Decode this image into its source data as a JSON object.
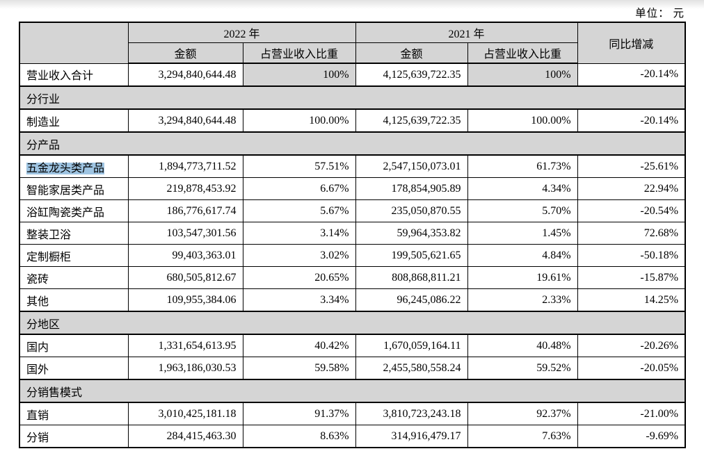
{
  "unit_label": "单位： 元",
  "colors": {
    "header_gray": "#d5d5d5",
    "selection_blue": "#9ec4e2",
    "border": "#000000"
  },
  "table": {
    "header": {
      "year_2022": "2022 年",
      "year_2021": "2021 年",
      "amount_label": "金额",
      "ratio_label": "占营业收入比重",
      "yoy_label": "同比增减"
    },
    "rows": [
      {
        "type": "data",
        "label": "营业收入合计",
        "a2022": "3,294,840,644.48",
        "r2022": "100%",
        "a2021": "4,125,639,722.35",
        "r2021": "100%",
        "yoy": "-20.14%",
        "gray_ratio": true
      },
      {
        "type": "section",
        "label": "分行业"
      },
      {
        "type": "data",
        "label": "制造业",
        "a2022": "3,294,840,644.48",
        "r2022": "100.00%",
        "a2021": "4,125,639,722.35",
        "r2021": "100.00%",
        "yoy": "-20.14%"
      },
      {
        "type": "section",
        "label": "分产品"
      },
      {
        "type": "data",
        "label": "五金龙头类产品",
        "highlight": true,
        "a2022": "1,894,773,711.52",
        "r2022": "57.51%",
        "a2021": "2,547,150,073.01",
        "r2021": "61.73%",
        "yoy": "-25.61%"
      },
      {
        "type": "data",
        "label": "智能家居类产品",
        "a2022": "219,878,453.92",
        "r2022": "6.67%",
        "a2021": "178,854,905.89",
        "r2021": "4.34%",
        "yoy": "22.94%"
      },
      {
        "type": "data",
        "label": "浴缸陶瓷类产品",
        "a2022": "186,776,617.74",
        "r2022": "5.67%",
        "a2021": "235,050,870.55",
        "r2021": "5.70%",
        "yoy": "-20.54%"
      },
      {
        "type": "data",
        "label": "整装卫浴",
        "a2022": "103,547,301.56",
        "r2022": "3.14%",
        "a2021": "59,964,353.82",
        "r2021": "1.45%",
        "yoy": "72.68%"
      },
      {
        "type": "data",
        "label": "定制橱柜",
        "a2022": "99,403,363.01",
        "r2022": "3.02%",
        "a2021": "199,505,621.65",
        "r2021": "4.84%",
        "yoy": "-50.18%"
      },
      {
        "type": "data",
        "label": "瓷砖",
        "a2022": "680,505,812.67",
        "r2022": "20.65%",
        "a2021": "808,868,811.21",
        "r2021": "19.61%",
        "yoy": "-15.87%"
      },
      {
        "type": "data",
        "label": "其他",
        "a2022": "109,955,384.06",
        "r2022": "3.34%",
        "a2021": "96,245,086.22",
        "r2021": "2.33%",
        "yoy": "14.25%"
      },
      {
        "type": "section",
        "label": "分地区"
      },
      {
        "type": "data",
        "label": "国内",
        "a2022": "1,331,654,613.95",
        "r2022": "40.42%",
        "a2021": "1,670,059,164.11",
        "r2021": "40.48%",
        "yoy": "-20.26%"
      },
      {
        "type": "data",
        "label": "国外",
        "a2022": "1,963,186,030.53",
        "r2022": "59.58%",
        "a2021": "2,455,580,558.24",
        "r2021": "59.52%",
        "yoy": "-20.05%"
      },
      {
        "type": "section",
        "label": "分销售模式"
      },
      {
        "type": "data",
        "label": "直销",
        "a2022": "3,010,425,181.18",
        "r2022": "91.37%",
        "a2021": "3,810,723,243.18",
        "r2021": "92.37%",
        "yoy": "-21.00%"
      },
      {
        "type": "data",
        "label": "分销",
        "a2022": "284,415,463.30",
        "r2022": "8.63%",
        "a2021": "314,916,479.17",
        "r2021": "7.63%",
        "yoy": "-9.69%"
      }
    ]
  }
}
